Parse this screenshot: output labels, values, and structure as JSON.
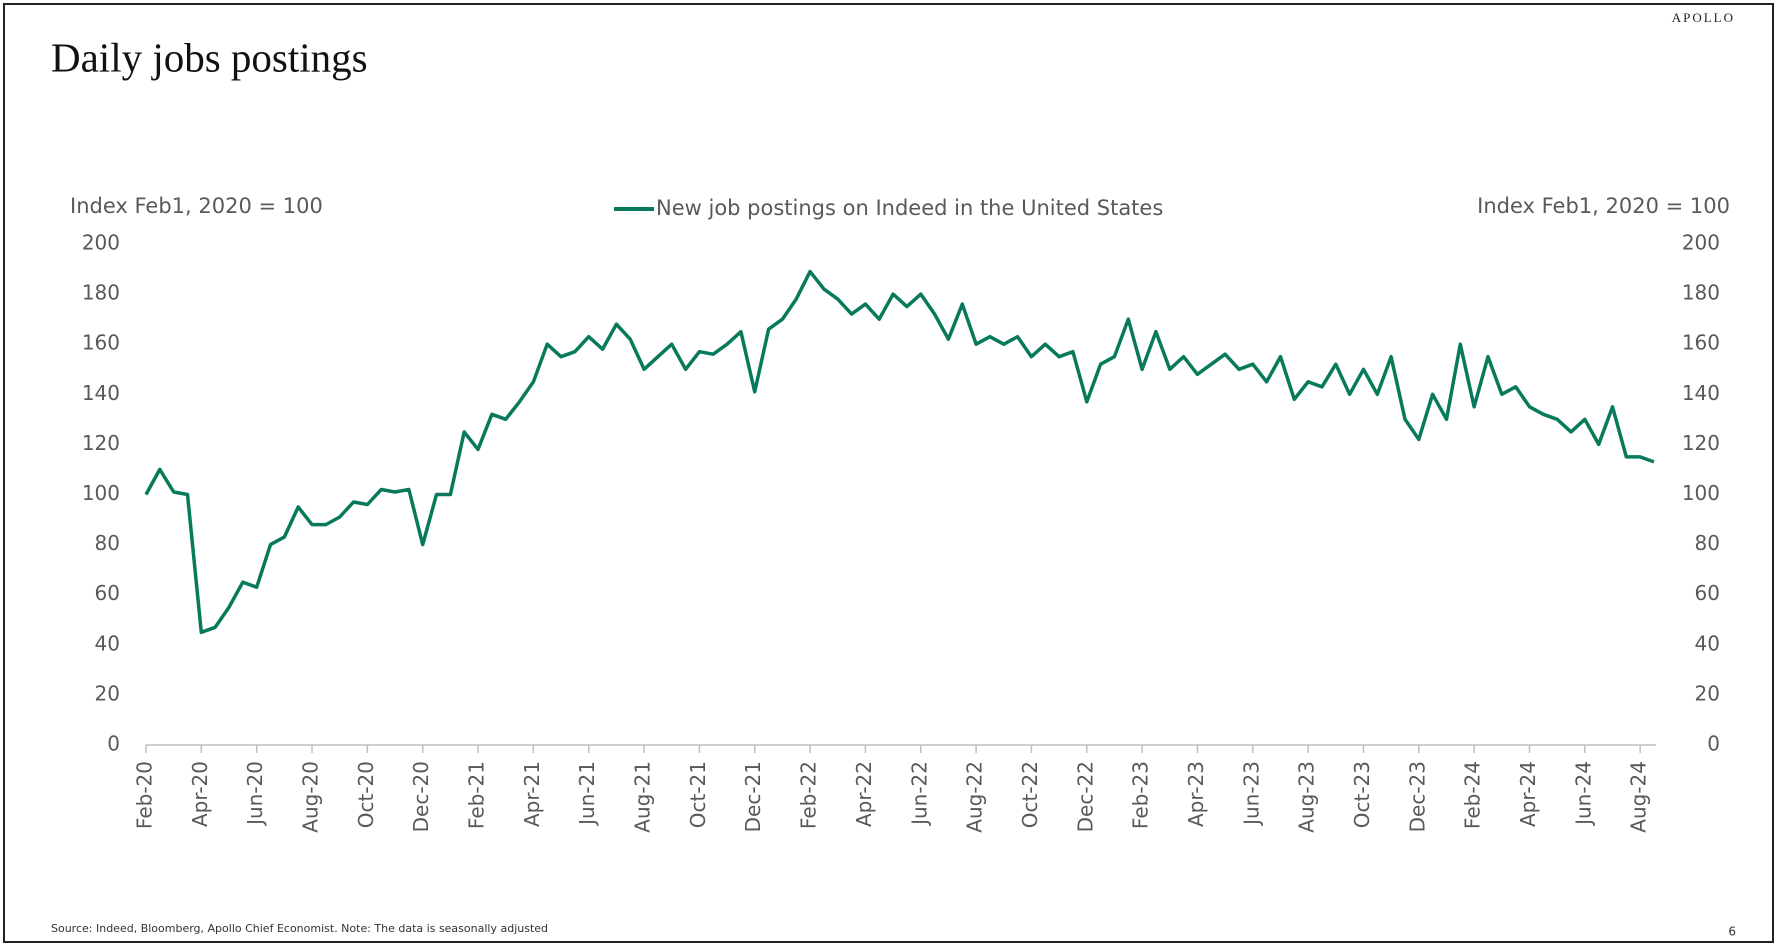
{
  "brand": "APOLLO",
  "footnote": "Source: Indeed, Bloomberg, Apollo Chief Economist. Note: The data is seasonally adjusted",
  "page_number": "6",
  "chart_data": {
    "type": "line",
    "title": "Daily jobs postings",
    "y_label": "Index Feb1, 2020 = 100",
    "y2_label": "Index Feb1, 2020 = 100",
    "categories": [
      "Feb-20",
      null,
      null,
      null,
      "Apr-20",
      null,
      null,
      null,
      "Jun-20",
      null,
      null,
      null,
      "Aug-20",
      null,
      null,
      null,
      "Oct-20",
      null,
      null,
      null,
      "Dec-20",
      null,
      null,
      null,
      "Feb-21",
      null,
      null,
      null,
      "Apr-21",
      null,
      null,
      null,
      "Jun-21",
      null,
      null,
      null,
      "Aug-21",
      null,
      null,
      null,
      "Oct-21",
      null,
      null,
      null,
      "Dec-21",
      null,
      null,
      null,
      "Feb-22",
      null,
      null,
      null,
      "Apr-22",
      null,
      null,
      null,
      "Jun-22",
      null,
      null,
      null,
      "Aug-22",
      null,
      null,
      null,
      "Oct-22",
      null,
      null,
      null,
      "Dec-22",
      null,
      null,
      null,
      "Feb-23",
      null,
      null,
      null,
      "Apr-23",
      null,
      null,
      null,
      "Jun-23",
      null,
      null,
      null,
      "Aug-23",
      null,
      null,
      null,
      "Oct-23",
      null,
      null,
      null,
      "Dec-23",
      null,
      null,
      null,
      "Feb-24",
      null,
      null,
      null,
      "Apr-24",
      null,
      null,
      null,
      "Jun-24",
      null,
      null,
      null,
      "Aug-24",
      null
    ],
    "series": [
      {
        "name": "New job postings on Indeed in the United States",
        "color": "#087a5c",
        "values": [
          100,
          110,
          101,
          100,
          45,
          47,
          55,
          65,
          63,
          80,
          83,
          95,
          88,
          88,
          91,
          97,
          96,
          102,
          101,
          102,
          80,
          100,
          100,
          125,
          118,
          132,
          130,
          137,
          145,
          160,
          155,
          157,
          163,
          158,
          168,
          162,
          150,
          155,
          160,
          150,
          157,
          156,
          160,
          165,
          141,
          166,
          170,
          178,
          189,
          182,
          178,
          172,
          176,
          170,
          180,
          175,
          180,
          172,
          162,
          176,
          160,
          163,
          160,
          163,
          155,
          160,
          155,
          157,
          137,
          152,
          155,
          170,
          150,
          165,
          150,
          155,
          148,
          152,
          156,
          150,
          152,
          145,
          155,
          138,
          145,
          143,
          152,
          140,
          150,
          140,
          155,
          130,
          122,
          140,
          130,
          160,
          135,
          155,
          140,
          143,
          135,
          132,
          130,
          125,
          130,
          120,
          135,
          115,
          115,
          113
        ]
      }
    ],
    "ylim": [
      0,
      200
    ],
    "yticks": [
      0,
      20,
      40,
      60,
      80,
      100,
      120,
      140,
      160,
      180,
      200
    ],
    "y2lim": [
      0,
      200
    ],
    "y2ticks": [
      0,
      20,
      40,
      60,
      80,
      100,
      120,
      140,
      160,
      180,
      200
    ],
    "legend": "top"
  }
}
